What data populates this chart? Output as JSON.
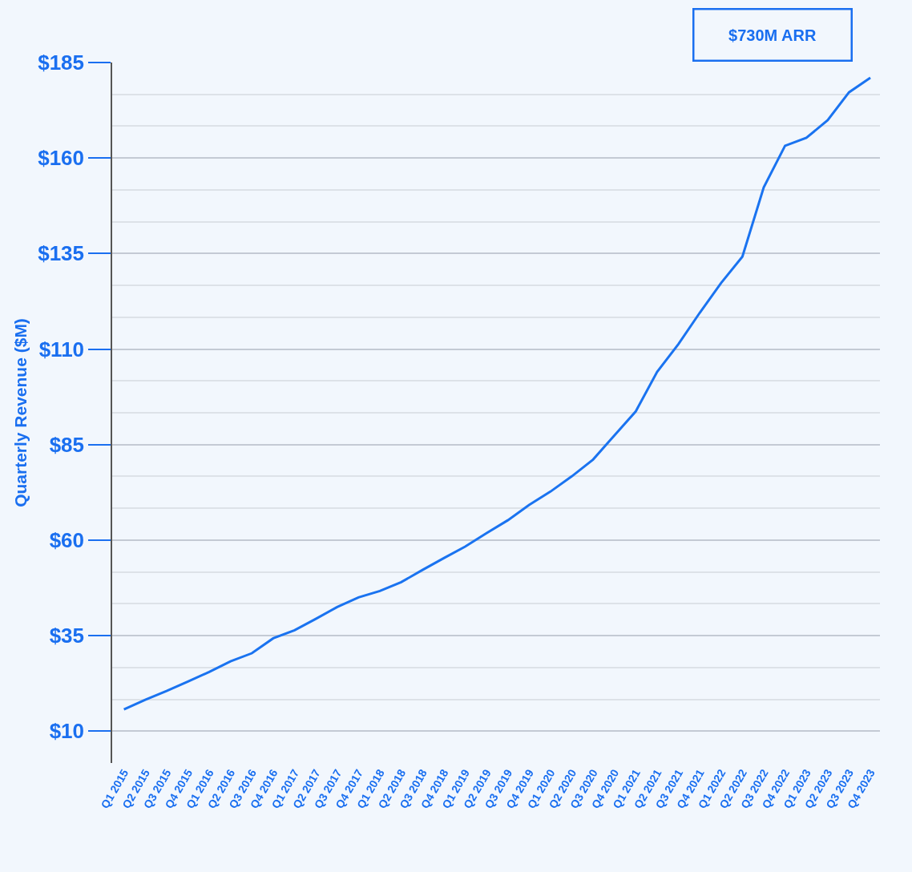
{
  "chart_data": {
    "type": "line",
    "ylabel": "Quarterly Revenue ($M)",
    "categories": [
      "Q1 2015",
      "Q2 2015",
      "Q3 2015",
      "Q4 2015",
      "Q1 2016",
      "Q2 2016",
      "Q3 2016",
      "Q4 2016",
      "Q1 2017",
      "Q2 2017",
      "Q3 2017",
      "Q4 2017",
      "Q1 2018",
      "Q2 2018",
      "Q3 2018",
      "Q4 2018",
      "Q1 2019",
      "Q2 2019",
      "Q3 2019",
      "Q4 2019",
      "Q1 2020",
      "Q2 2020",
      "Q3 2020",
      "Q4 2020",
      "Q1 2021",
      "Q2 2021",
      "Q3 2021",
      "Q4 2021",
      "Q1 2022",
      "Q2 2022",
      "Q3 2022",
      "Q4 2022",
      "Q1 2023",
      "Q2 2023",
      "Q3 2023",
      "Q4 2023"
    ],
    "series": [
      {
        "color": "#1a73f0",
        "values": [
          15.7,
          18.2,
          20.5,
          23,
          25.5,
          28.3,
          30.4,
          34.3,
          36.4,
          39.4,
          42.5,
          45,
          46.7,
          49,
          52.2,
          55.3,
          58.3,
          61.8,
          65.2,
          69.2,
          72.7,
          76.7,
          81.1,
          87.4,
          93.7,
          104,
          111.3,
          119.5,
          127.3,
          134.2,
          152.3,
          163.2,
          165.3,
          169.9,
          177.2,
          181
        ]
      }
    ],
    "ylim": [
      1.67,
      185
    ],
    "yticks": [
      {
        "value": 10,
        "label": "$10"
      },
      {
        "value": 18.33,
        "label": null
      },
      {
        "value": 26.67,
        "label": null
      },
      {
        "value": 35,
        "label": "$35"
      },
      {
        "value": 43.33,
        "label": null
      },
      {
        "value": 51.67,
        "label": null
      },
      {
        "value": 60,
        "label": "$60"
      },
      {
        "value": 68.33,
        "label": null
      },
      {
        "value": 76.67,
        "label": null
      },
      {
        "value": 85,
        "label": "$85"
      },
      {
        "value": 93.33,
        "label": null
      },
      {
        "value": 101.67,
        "label": null
      },
      {
        "value": 110,
        "label": "$110"
      },
      {
        "value": 118.33,
        "label": null
      },
      {
        "value": 126.67,
        "label": null
      },
      {
        "value": 135,
        "label": "$135"
      },
      {
        "value": 143.33,
        "label": null
      },
      {
        "value": 151.67,
        "label": null
      },
      {
        "value": 160,
        "label": "$160"
      },
      {
        "value": 168.33,
        "label": null
      },
      {
        "value": 176.67,
        "label": null
      },
      {
        "value": 185,
        "label": "$185"
      }
    ],
    "grid": "y",
    "marker": "none",
    "line_style": "solid",
    "legend": false,
    "annotations": [
      "$730M ARR"
    ]
  }
}
